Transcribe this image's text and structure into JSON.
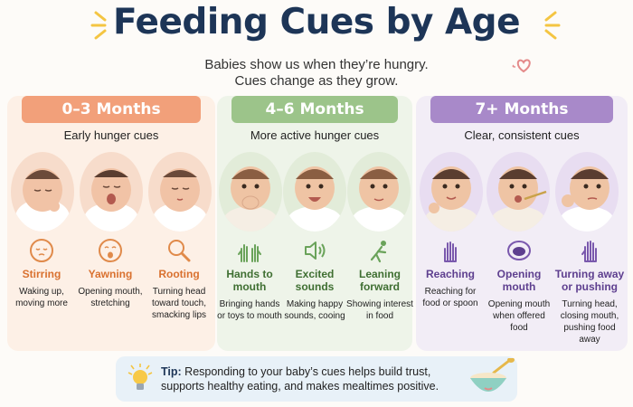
{
  "header": {
    "title": "Feeding Cues by Age",
    "subtitle_line1": "Babies show us when they’re hungry.",
    "subtitle_line2": "Cues change as they grow."
  },
  "colors": {
    "title": "#1d3557",
    "accent_orange": "#f2a07a",
    "accent_green": "#9cc48a",
    "accent_purple": "#a889c9",
    "burst": "#f4c542"
  },
  "panels": [
    {
      "heading": "0–3 Months",
      "caption": "Early hunger cues",
      "cues": [
        {
          "label": "Stirring",
          "description": "Waking up, moving more",
          "icon": "sleepy-face-icon"
        },
        {
          "label": "Yawning",
          "description": "Opening mouth, stretching",
          "icon": "yawning-face-icon"
        },
        {
          "label": "Rooting",
          "description": "Turning head toward touch, smacking lips",
          "icon": "magnifier-icon"
        }
      ]
    },
    {
      "heading": "4–6 Months",
      "caption": "More active hunger cues",
      "cues": [
        {
          "label": "Hands to mouth",
          "description": "Bringing hands or toys to mouth",
          "icon": "hands-icon"
        },
        {
          "label": "Excited sounds",
          "description": "Making happy sounds, cooing",
          "icon": "speaker-icon"
        },
        {
          "label": "Leaning forward",
          "description": "Showing interest in food",
          "icon": "leaning-person-icon"
        }
      ]
    },
    {
      "heading": "7+ Months",
      "caption": "Clear, consistent cues",
      "cues": [
        {
          "label": "Reaching",
          "description": "Reaching for food or spoon",
          "icon": "reaching-hand-icon"
        },
        {
          "label": "Opening mouth",
          "description": "Opening mouth when offered food",
          "icon": "open-mouth-icon"
        },
        {
          "label": "Turning away or pushing",
          "description": "Turning head, closing mouth, pushing food away",
          "icon": "stop-hand-icon"
        }
      ]
    }
  ],
  "tip": {
    "label": "Tip:",
    "text": "Responding to your baby’s cues helps build trust, supports healthy eating, and makes mealtimes positive."
  }
}
